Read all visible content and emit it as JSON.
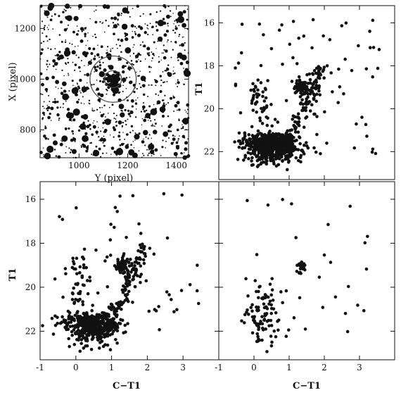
{
  "chart_data": [
    {
      "id": "field",
      "type": "scatter",
      "xlabel": "Y (pixel)",
      "ylabel": "X (pixel)",
      "xlim": [
        840,
        1450
      ],
      "ylim": [
        690,
        1290
      ],
      "xticks": [
        1000,
        1200,
        1400
      ],
      "yticks": [
        800,
        1000,
        1200
      ],
      "circles": [
        {
          "cx": 1140,
          "cy": 1000,
          "r": 95
        },
        {
          "cx": 1140,
          "cy": 1000,
          "r": 35
        }
      ],
      "seed": 7,
      "n_field": 900,
      "n_core": 70,
      "color": "#111111"
    },
    {
      "id": "cmd-cluster-field",
      "type": "scatter",
      "xlabel": "",
      "ylabel": "T1",
      "xlim": [
        -1,
        4
      ],
      "ylim": [
        23.3,
        15.2
      ],
      "xticks": [
        -1,
        0,
        1,
        2,
        3
      ],
      "yticks": [
        16,
        18,
        20,
        22
      ],
      "seed": 11,
      "n": 900,
      "color": "#111111"
    },
    {
      "id": "cmd-cleaned",
      "type": "scatter",
      "xlabel": "C−T1",
      "ylabel": "T1",
      "xlim": [
        -1,
        4
      ],
      "ylim": [
        23.3,
        15.2
      ],
      "xticks": [
        -1,
        0,
        1,
        2,
        3
      ],
      "yticks": [
        16,
        18,
        20,
        22
      ],
      "seed": 23,
      "n": 700,
      "color": "#111111"
    },
    {
      "id": "cmd-field",
      "type": "scatter",
      "xlabel": "C−T1",
      "ylabel": "",
      "xlim": [
        -1,
        4
      ],
      "ylim": [
        23.3,
        15.2
      ],
      "xticks": [
        -1,
        0,
        1,
        2,
        3
      ],
      "yticks": [
        16,
        18,
        20,
        22
      ],
      "seed": 37,
      "n": 150,
      "color": "#111111"
    }
  ]
}
